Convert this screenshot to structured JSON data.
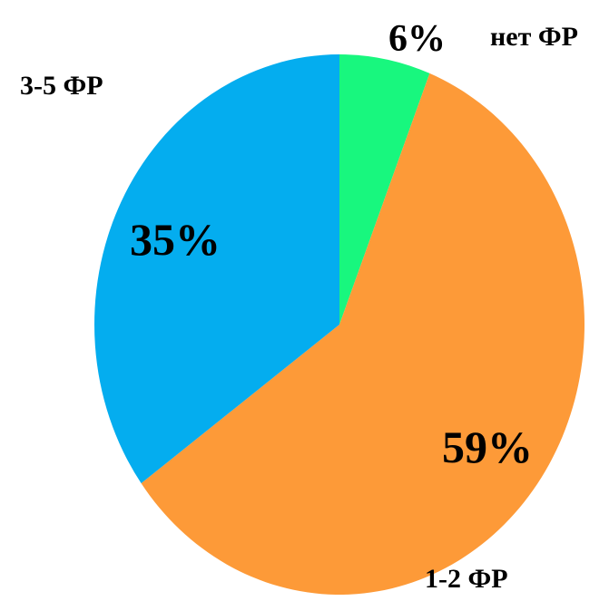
{
  "chart_data": {
    "type": "pie",
    "title": "",
    "slices": [
      {
        "label": "нет ФР",
        "value": 6,
        "value_label": "6%",
        "color": "#18F77E"
      },
      {
        "label": "1-2 ФР",
        "value": 59,
        "value_label": "59%",
        "color": "#FD9A38"
      },
      {
        "label": "3-5 ФР",
        "value": 35,
        "value_label": "35%",
        "color": "#04ADEF"
      }
    ],
    "start": "12 o'clock",
    "direction": "clockwise",
    "legend": "none"
  }
}
